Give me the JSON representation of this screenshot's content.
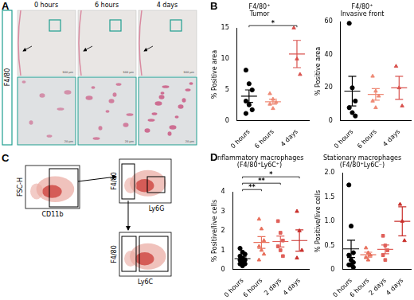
{
  "panel_a": {
    "panel": "A",
    "stain": "F4/80",
    "times": [
      "0 hours",
      "6 hours",
      "4 days"
    ],
    "scale_bars": [
      "500 μm",
      "20 μm"
    ]
  },
  "panel_c": {
    "panel": "C",
    "plots": [
      {
        "x_label": "CD11b",
        "y_label": "FSC-H"
      },
      {
        "x_label": "Ly6G",
        "y_label": "F4/80"
      },
      {
        "x_label": "Ly6C",
        "y_label": "F4/80"
      }
    ]
  },
  "chart_data": [
    {
      "panel": "B",
      "type": "dot",
      "title": [
        "F4/80⁺",
        "Tumor"
      ],
      "ylabel": "% Positive area",
      "categories": [
        "0 hours",
        "6 hours",
        "4 days"
      ],
      "values": [
        [
          8.2,
          6.0,
          5.0,
          3.2,
          2.6,
          1.8,
          1.2
        ],
        [
          4.4,
          3.5,
          3.0,
          2.7,
          2.0
        ],
        [
          15.0,
          10.0,
          7.5
        ]
      ],
      "mean": [
        4.0,
        3.1,
        10.8
      ],
      "error": [
        1.0,
        0.4,
        2.2
      ],
      "colors": [
        "#000000",
        "#ee8a76",
        "#d9534f"
      ],
      "markers": [
        "circle",
        "triangle",
        "triangle"
      ],
      "ylim": [
        0,
        15
      ],
      "yticks": [
        0,
        5,
        10,
        15
      ],
      "grid": false,
      "annotations": [
        {
          "from": "0 hours",
          "to": "4 days",
          "text": "*"
        }
      ]
    },
    {
      "type": "dot",
      "title": [
        "F4/80⁺",
        "Invasive front"
      ],
      "ylabel": "% Positive area",
      "categories": [
        "0 hours",
        "6 hours",
        "4 days"
      ],
      "values": [
        [
          59,
          20,
          12,
          8,
          5,
          3
        ],
        [
          27,
          18,
          15,
          12,
          8
        ],
        [
          33,
          20,
          9
        ]
      ],
      "mean": [
        18,
        16,
        20
      ],
      "error": [
        9,
        3.5,
        7
      ],
      "colors": [
        "#000000",
        "#ee8a76",
        "#d9534f"
      ],
      "markers": [
        "circle",
        "triangle",
        "triangle"
      ],
      "ylim": [
        0,
        60
      ],
      "yticks": [
        0,
        20,
        40,
        60
      ],
      "grid": false
    },
    {
      "panel": "D",
      "type": "dot",
      "title": [
        "Inflammatory macrophages",
        "(F4/80⁺Ly6C⁺)"
      ],
      "ylabel": "% Positive/live cells",
      "categories": [
        "0 hours",
        "6 hours",
        "2 days",
        "4 days"
      ],
      "values": [
        [
          1.1,
          0.9,
          0.8,
          0.7,
          0.6,
          0.5,
          0.5,
          0.4,
          0.3,
          0.3,
          0.2
        ],
        [
          2.6,
          2.1,
          1.5,
          1.2,
          1.0,
          0.8,
          0.5
        ],
        [
          2.5,
          1.9,
          1.5,
          1.2,
          1.0,
          0.7
        ],
        [
          3.0,
          2.0,
          1.0,
          0.6
        ]
      ],
      "mean": [
        0.57,
        1.4,
        1.45,
        1.5
      ],
      "error": [
        0.09,
        0.3,
        0.28,
        0.55
      ],
      "colors": [
        "#000000",
        "#e8705c",
        "#e0605a",
        "#c9302c"
      ],
      "markers": [
        "circle",
        "triangle",
        "square",
        "triangle"
      ],
      "ylim": [
        0,
        4
      ],
      "yticks": [
        0,
        1,
        2,
        3,
        4
      ],
      "grid": false,
      "annotations": [
        {
          "from": "0 hours",
          "to": "6 hours",
          "text": "**"
        },
        {
          "from": "0 hours",
          "to": "2 days",
          "text": "**"
        },
        {
          "from": "0 hours",
          "to": "4 days",
          "text": "*"
        }
      ]
    },
    {
      "type": "dot",
      "title": [
        "Stationary macrophages",
        "(F4/80⁺Ly6C⁻)"
      ],
      "ylabel": "% Positive/live cells",
      "categories": [
        "0 hours",
        "6 hours",
        "2 days",
        "4 days"
      ],
      "values": [
        [
          1.75,
          0.9,
          0.35,
          0.3,
          0.2,
          0.15,
          0.1,
          0.1,
          0.05
        ],
        [
          0.45,
          0.35,
          0.3,
          0.25,
          0.2
        ],
        [
          0.7,
          0.5,
          0.4,
          0.3,
          0.2
        ],
        [
          1.35,
          1.0,
          0.6
        ]
      ],
      "mean": [
        0.43,
        0.31,
        0.42,
        1.0
      ],
      "error": [
        0.18,
        0.05,
        0.09,
        0.3
      ],
      "colors": [
        "#000000",
        "#e8705c",
        "#e0605a",
        "#c9302c"
      ],
      "markers": [
        "circle",
        "triangle",
        "square",
        "triangle"
      ],
      "ylim": [
        0,
        2
      ],
      "yticks": [
        0,
        0.5,
        {
          "value": 1,
          "label": "1.0"
        },
        1.5,
        {
          "value": 2,
          "label": "2.0"
        }
      ],
      "grid": false
    }
  ]
}
